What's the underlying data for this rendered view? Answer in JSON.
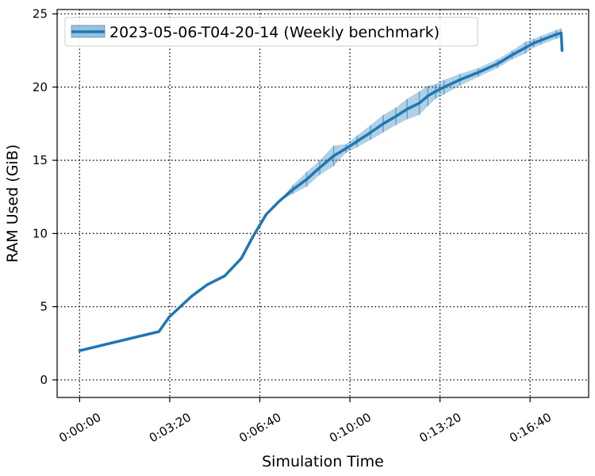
{
  "chart_data": {
    "type": "line",
    "xlabel": "Simulation Time",
    "ylabel": "RAM Used (GiB)",
    "x_unit": "seconds",
    "xlim": [
      -50,
      1130
    ],
    "ylim": [
      -1.2,
      25.3
    ],
    "x_ticks": [
      {
        "value": 0,
        "label": "0:00:00"
      },
      {
        "value": 200,
        "label": "0:03:20"
      },
      {
        "value": 400,
        "label": "0:06:40"
      },
      {
        "value": 600,
        "label": "0:10:00"
      },
      {
        "value": 800,
        "label": "0:13:20"
      },
      {
        "value": 1000,
        "label": "0:16:40"
      }
    ],
    "y_ticks": [
      {
        "value": 0,
        "label": "0"
      },
      {
        "value": 5,
        "label": "5"
      },
      {
        "value": 10,
        "label": "10"
      },
      {
        "value": 15,
        "label": "15"
      },
      {
        "value": 20,
        "label": "20"
      },
      {
        "value": 25,
        "label": "25"
      }
    ],
    "grid": true,
    "grid_style": "dotted",
    "legend_position": "top-left",
    "series": [
      {
        "name": "2023-05-06-T04-20-14 (Weekly benchmark)",
        "color": "#1f77b4",
        "x": [
          0,
          176,
          199,
          248,
          283,
          322,
          359,
          385,
          414,
          443,
          473,
          504,
          533,
          564,
          591,
          616,
          646,
          674,
          702,
          727,
          754,
          773,
          790,
          809,
          844,
          885,
          928,
          960,
          990,
          1008,
          1024,
          1058,
          1069,
          1071
        ],
        "y": [
          2.0,
          3.3,
          4.3,
          5.7,
          6.5,
          7.1,
          8.3,
          9.8,
          11.3,
          12.2,
          13.0,
          13.7,
          14.5,
          15.3,
          15.8,
          16.3,
          16.9,
          17.5,
          18.0,
          18.5,
          18.9,
          19.4,
          19.7,
          20.0,
          20.5,
          21.0,
          21.6,
          22.2,
          22.7,
          23.0,
          23.2,
          23.6,
          23.7,
          22.5
        ],
        "err": [
          0,
          0,
          0,
          0,
          0,
          0,
          0,
          0,
          0,
          0,
          0.3,
          0.5,
          0.5,
          0.7,
          0.3,
          0.4,
          0.5,
          0.6,
          0.6,
          0.7,
          0.8,
          0.7,
          0.5,
          0.5,
          0.4,
          0.3,
          0.3,
          0.3,
          0.4,
          0.3,
          0.3,
          0.3,
          0.3,
          0
        ]
      }
    ]
  }
}
